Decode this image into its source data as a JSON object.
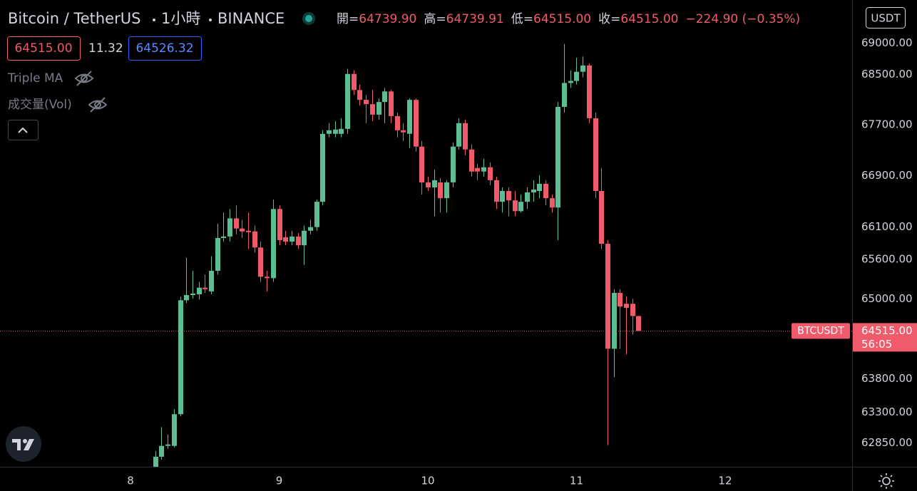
{
  "chart_data": {
    "type": "candlestick",
    "title": "Bitcoin / TetherUS",
    "interval": "1小時",
    "exchange": "BINANCE",
    "quote": [
      {
        "label": "開=",
        "value": "64739.90"
      },
      {
        "label": "高=",
        "value": "64739.91"
      },
      {
        "label": "低=",
        "value": "64515.00"
      },
      {
        "label": "收=",
        "value": "64515.00"
      }
    ],
    "change": "−224.90 (−0.35%)",
    "bid": "64515.00",
    "spread": "11.32",
    "ask": "64526.32",
    "indicators": [
      "Triple MA",
      "成交量(Vol)"
    ],
    "currency": "USDT",
    "up_color": "#5cbf94",
    "down_color": "#ef5b6a",
    "log_scale": true,
    "xlim": [
      7.122,
      12.854
    ],
    "xticks": [
      8,
      9,
      10,
      11,
      12
    ],
    "ylim": [
      62500,
      69700
    ],
    "yticks": [
      {
        "value": 69000,
        "label": "69000.00"
      },
      {
        "value": 68500,
        "label": "68500.00"
      },
      {
        "value": 67700,
        "label": "67700.00"
      },
      {
        "value": 66900,
        "label": "66900.00"
      },
      {
        "value": 66100,
        "label": "66100.00"
      },
      {
        "value": 65600,
        "label": "65600.00"
      },
      {
        "value": 65000,
        "label": "65000.00"
      },
      {
        "value": 63800,
        "label": "63800.00"
      },
      {
        "value": 63300,
        "label": "63300.00"
      },
      {
        "value": 62850,
        "label": "62850.00"
      }
    ],
    "last_price": {
      "value": 64515,
      "label": "64515.00",
      "countdown": "56:05",
      "symbol": "BTCUSDT"
    },
    "x": [
      8.1667,
      8.2083,
      8.25,
      8.2917,
      8.3333,
      8.375,
      8.4167,
      8.4583,
      8.5,
      8.5417,
      8.5833,
      8.625,
      8.6667,
      8.7083,
      8.75,
      8.7917,
      8.8333,
      8.875,
      8.9167,
      8.9583,
      9,
      9.0417,
      9.0833,
      9.125,
      9.1667,
      9.2083,
      9.25,
      9.2917,
      9.3333,
      9.375,
      9.4167,
      9.4583,
      9.5,
      9.5417,
      9.5833,
      9.625,
      9.6667,
      9.7083,
      9.75,
      9.7917,
      9.8333,
      9.875,
      9.9167,
      9.9583,
      10,
      10.0417,
      10.0833,
      10.125,
      10.1667,
      10.2083,
      10.25,
      10.2917,
      10.3333,
      10.375,
      10.4167,
      10.4583,
      10.5,
      10.5417,
      10.5833,
      10.625,
      10.6667,
      10.7083,
      10.75,
      10.7917,
      10.8333,
      10.875,
      10.9167,
      10.9583,
      11,
      11.0417,
      11.0833,
      11.125,
      11.1667,
      11.2083,
      11.25,
      11.2917,
      11.3333,
      11.375,
      11.4167
    ],
    "open": [
      62498,
      62647,
      62806,
      62806,
      63272,
      64979,
      65058,
      65069,
      65170,
      65113,
      65427,
      65931,
      65954,
      66234,
      66077,
      66043,
      66032,
      65785,
      65337,
      65315,
      66379,
      65942,
      65875,
      65954,
      65819,
      66043,
      66099,
      66491,
      67555,
      67555,
      67555,
      67633,
      68507,
      68250,
      68093,
      68025,
      67858,
      68059,
      68227,
      67835,
      67611,
      67555,
      68093,
      67354,
      66793,
      66715,
      66793,
      66547,
      66793,
      67354,
      67723,
      67309,
      67018,
      66962,
      67029,
      66827,
      66491,
      66659,
      66513,
      66345,
      66491,
      66637,
      66659,
      66771,
      66547,
      66402,
      67981,
      68362,
      68395,
      68541,
      68642,
      67801,
      66659,
      65842,
      64247,
      65091,
      64926,
      64926,
      64739.9
    ],
    "high": [
      62731,
      63081,
      62975,
      63346,
      65035,
      65629,
      65427,
      65259,
      65371,
      65651,
      66155,
      66323,
      66379,
      66435,
      66211,
      66323,
      66122,
      65875,
      65427,
      66525,
      66435,
      66043,
      66043,
      66010,
      66122,
      66211,
      66525,
      67611,
      67723,
      67757,
      67801,
      68586,
      68563,
      68339,
      68171,
      68250,
      68115,
      68283,
      68250,
      67891,
      67723,
      68115,
      68115,
      67443,
      66883,
      66995,
      66861,
      66827,
      67421,
      67801,
      67779,
      67387,
      67085,
      67163,
      67107,
      66883,
      66715,
      66715,
      66659,
      66603,
      66715,
      66827,
      66905,
      66827,
      66603,
      68059,
      68989,
      68563,
      68765,
      68787,
      68675,
      67891,
      67018,
      65898,
      65147,
      65147,
      65035,
      65002,
      64739.91
    ],
    "low": [
      62466,
      62604,
      62763,
      62784,
      63240,
      64936,
      65002,
      64989,
      65091,
      65069,
      65371,
      65875,
      65875,
      65987,
      65931,
      65763,
      65707,
      65259,
      65113,
      65259,
      65819,
      65819,
      65819,
      65763,
      65517,
      65987,
      66043,
      66435,
      67499,
      67499,
      67499,
      67555,
      68171,
      68003,
      67723,
      67757,
      67779,
      67723,
      67723,
      67499,
      67443,
      67331,
      67275,
      66603,
      66659,
      66267,
      66323,
      66323,
      66715,
      67309,
      67219,
      66883,
      66827,
      66883,
      66749,
      66379,
      66323,
      66267,
      66267,
      66323,
      66379,
      66491,
      66547,
      66435,
      66323,
      65898,
      67891,
      68283,
      68339,
      68451,
      67723,
      66547,
      65763,
      62816,
      63823,
      64247,
      64163,
      64459,
      64515
    ],
    "close": [
      62647,
      62806,
      62827,
      63272,
      64979,
      65058,
      65080,
      65170,
      65147,
      65427,
      65931,
      65954,
      66234,
      66077,
      66032,
      66021,
      65785,
      65337,
      65315,
      66379,
      65898,
      65875,
      65954,
      65819,
      66043,
      66099,
      66491,
      67555,
      67611,
      67622,
      67633,
      68507,
      68250,
      68093,
      68025,
      67858,
      68059,
      68227,
      67835,
      67611,
      67578,
      68093,
      67354,
      66793,
      66715,
      66827,
      66547,
      66793,
      67354,
      67723,
      67309,
      66962,
      66962,
      67029,
      66827,
      66491,
      66659,
      66513,
      66345,
      66491,
      66637,
      66681,
      66771,
      66547,
      66402,
      67981,
      68362,
      68395,
      68541,
      68642,
      67801,
      66659,
      65842,
      64247,
      65091,
      64883,
      64862,
      64740,
      64515
    ]
  }
}
